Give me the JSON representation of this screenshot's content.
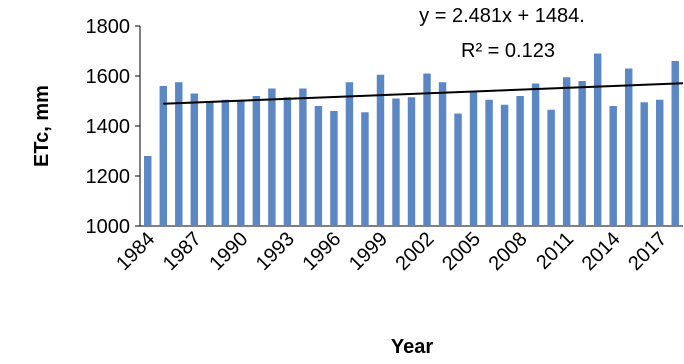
{
  "chart_data": {
    "type": "bar",
    "x": [
      1984,
      1985,
      1986,
      1987,
      1988,
      1989,
      1990,
      1991,
      1992,
      1993,
      1994,
      1995,
      1996,
      1997,
      1998,
      1999,
      2000,
      2001,
      2002,
      2003,
      2004,
      2005,
      2006,
      2007,
      2008,
      2009,
      2010,
      2011,
      2012,
      2013,
      2014,
      2015,
      2016,
      2017,
      2018
    ],
    "x_tick_labels": [
      "1984",
      "1987",
      "1990",
      "1993",
      "1996",
      "1999",
      "2002",
      "2005",
      "2008",
      "2011",
      "2014",
      "2017"
    ],
    "values": [
      1280,
      1560,
      1575,
      1530,
      1495,
      1505,
      1500,
      1520,
      1550,
      1515,
      1550,
      1480,
      1460,
      1575,
      1455,
      1605,
      1510,
      1515,
      1610,
      1575,
      1450,
      1540,
      1505,
      1485,
      1520,
      1570,
      1465,
      1595,
      1580,
      1690,
      1480,
      1630,
      1495,
      1505,
      1660
    ],
    "ylim": [
      1000,
      1800
    ],
    "yticks": [
      1000,
      1200,
      1400,
      1600,
      1800
    ],
    "xlabel": "Year",
    "ylabel": "ETc, mm",
    "trendline": {
      "slope": 2.481,
      "intercept": 1484,
      "x_start_index": 1,
      "equation": "y = 2.481x + 1484.",
      "r2": "R² = 0.123"
    },
    "bar_color": "#5b88c4",
    "grid": false,
    "legend": "none"
  }
}
